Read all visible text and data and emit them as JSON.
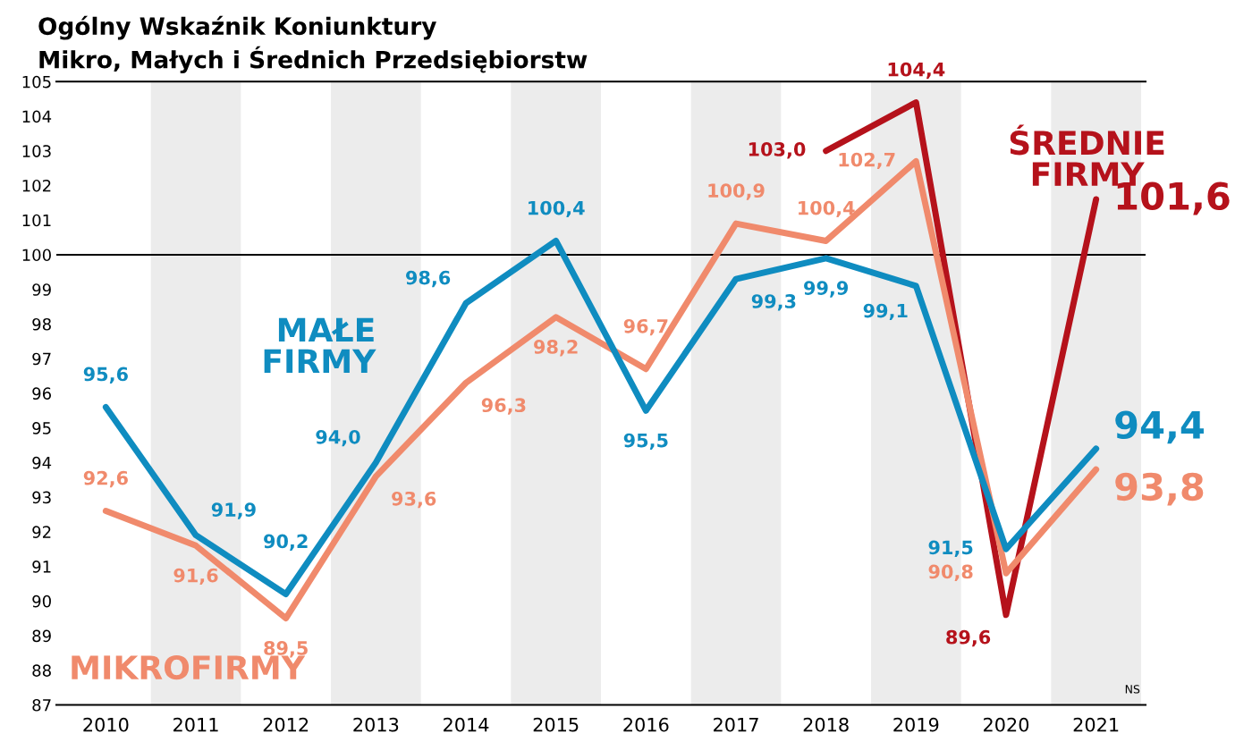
{
  "chart_data": {
    "type": "line",
    "title": "Ogólny Wskaźnik Koniunktury\nMikro, Małych i Średnich Przedsiębiorstw",
    "categories": [
      "2010",
      "2011",
      "2012",
      "2013",
      "2014",
      "2015",
      "2016",
      "2017",
      "2018",
      "2019",
      "2020",
      "2021"
    ],
    "series": [
      {
        "name": "MAŁE\nFIRMY",
        "color": "#0f8cc0",
        "values": [
          95.6,
          91.9,
          90.2,
          94.0,
          98.6,
          100.4,
          95.5,
          99.3,
          99.9,
          99.1,
          91.5,
          94.4
        ],
        "value_labels": [
          "95,6",
          "91,9",
          "90,2",
          "94,0",
          "98,6",
          "100,4",
          "95,5",
          "99,3",
          "99,9",
          "99,1",
          "91,5",
          "94,4"
        ]
      },
      {
        "name": "MIKROFIRMY",
        "color": "#f08a6c",
        "values": [
          92.6,
          91.6,
          89.5,
          93.6,
          96.3,
          98.2,
          96.7,
          100.9,
          100.4,
          102.7,
          90.8,
          93.8
        ],
        "value_labels": [
          "92,6",
          "91,6",
          "89,5",
          "93,6",
          "96,3",
          "98,2",
          "96,7",
          "100,9",
          "100,4",
          "102,7",
          "90,8",
          "93,8"
        ]
      },
      {
        "name": "ŚREDNIE\nFIRMY",
        "color": "#b5121b",
        "values": [
          null,
          null,
          null,
          null,
          null,
          null,
          null,
          null,
          103.0,
          104.4,
          89.6,
          101.6
        ],
        "value_labels": [
          null,
          null,
          null,
          null,
          null,
          null,
          null,
          null,
          "103,0",
          "104,4",
          "89,6",
          "101,6"
        ]
      }
    ],
    "ylim": [
      87,
      105
    ],
    "yticks": [
      87,
      88,
      89,
      90,
      91,
      92,
      93,
      94,
      95,
      96,
      97,
      98,
      99,
      100,
      101,
      102,
      103,
      104,
      105
    ],
    "grid": false,
    "legend": false,
    "marker": "none",
    "line_style": "solid",
    "ref_lines": [
      {
        "axis": "y",
        "value": 100,
        "color": "#000000"
      }
    ],
    "bands": [
      {
        "axis": "x",
        "from": "2011",
        "to": "2011",
        "color": "#ececec"
      },
      {
        "axis": "x",
        "from": "2013",
        "to": "2013",
        "color": "#ececec"
      },
      {
        "axis": "x",
        "from": "2015",
        "to": "2015",
        "color": "#ececec"
      },
      {
        "axis": "x",
        "from": "2017",
        "to": "2017",
        "color": "#ececec"
      },
      {
        "axis": "x",
        "from": "2019",
        "to": "2019",
        "color": "#ececec"
      },
      {
        "axis": "x",
        "from": "2021",
        "to": "2021",
        "color": "#ececec"
      }
    ],
    "annotations": [
      "NS"
    ]
  }
}
